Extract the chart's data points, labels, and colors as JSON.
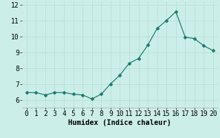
{
  "x": [
    0,
    1,
    2,
    3,
    4,
    5,
    6,
    7,
    8,
    9,
    10,
    11,
    12,
    13,
    14,
    15,
    16,
    17,
    18,
    19,
    20
  ],
  "y": [
    6.45,
    6.45,
    6.3,
    6.45,
    6.45,
    6.35,
    6.3,
    6.05,
    6.35,
    7.0,
    7.55,
    8.3,
    8.6,
    9.45,
    10.5,
    11.0,
    11.55,
    9.95,
    9.85,
    9.4,
    9.1
  ],
  "line_color": "#1a7a6e",
  "marker": "D",
  "marker_size": 2.5,
  "background_color": "#cceee8",
  "grid_color": "#b8ddd8",
  "xlabel": "Humidex (Indice chaleur)",
  "xlabel_fontsize": 7.5,
  "tick_fontsize": 7,
  "xlim": [
    -0.5,
    20.5
  ],
  "ylim": [
    5.5,
    12.2
  ],
  "yticks": [
    6,
    7,
    8,
    9,
    10,
    11,
    12
  ],
  "xticks": [
    0,
    1,
    2,
    3,
    4,
    5,
    6,
    7,
    8,
    9,
    10,
    11,
    12,
    13,
    14,
    15,
    16,
    17,
    18,
    19,
    20
  ],
  "spine_color": "#aaaaaa",
  "linewidth": 0.9
}
